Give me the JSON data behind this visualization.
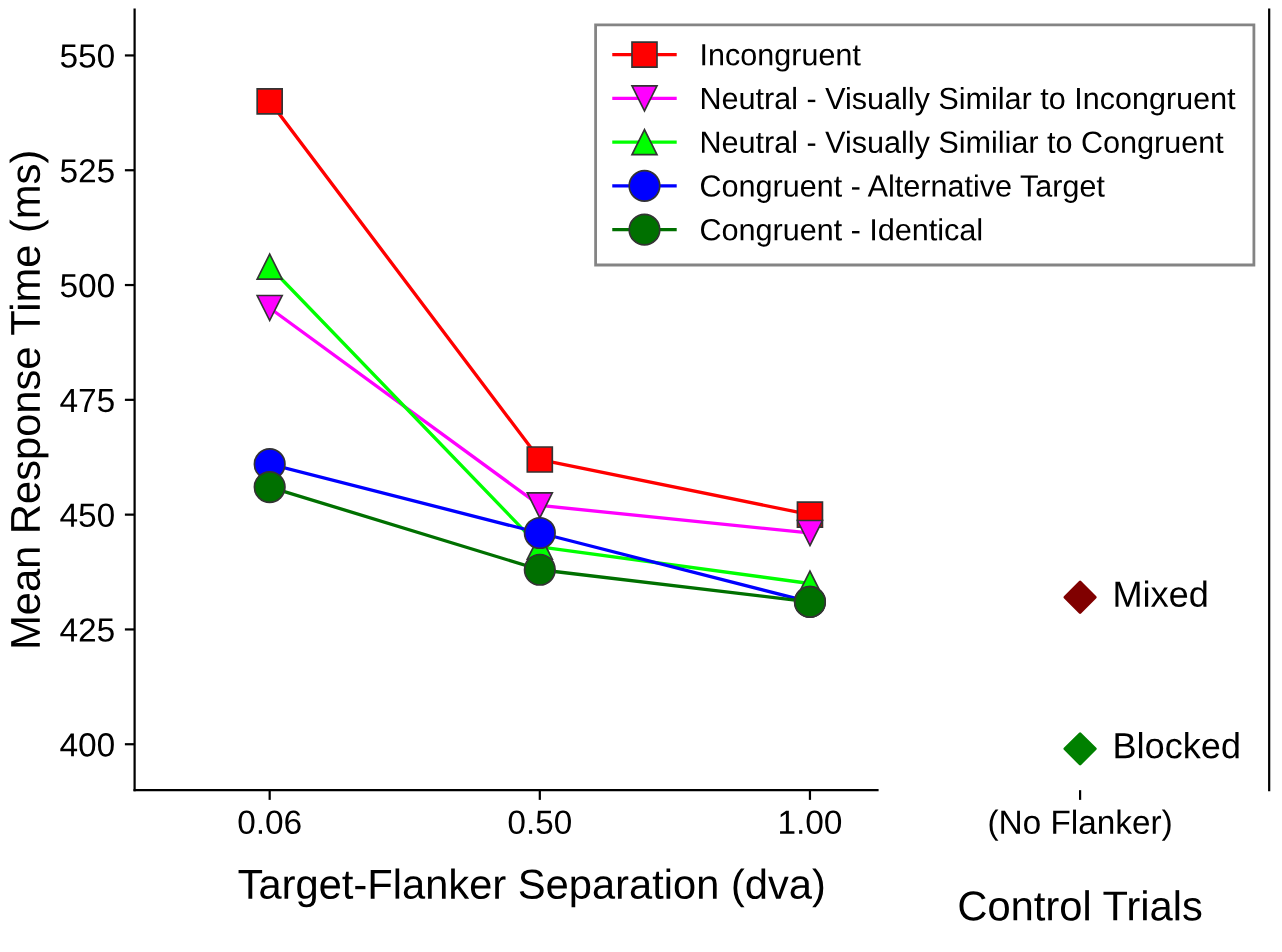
{
  "chart_data": {
    "type": "line",
    "xlabel": "Target-Flanker Separation (dva)",
    "ylabel": "Mean Response Time (ms)",
    "categories": [
      "0.06",
      "0.50",
      "1.00",
      "(No Flanker)"
    ],
    "ylim": [
      390,
      560
    ],
    "yticks": [
      400,
      425,
      450,
      475,
      500,
      525,
      550
    ],
    "grid": false,
    "legend": "top right",
    "line_style": "solid",
    "series": [
      {
        "name": "Incongruent",
        "color": "#ff0000",
        "marker": "square",
        "values": [
          540,
          462,
          450,
          null
        ]
      },
      {
        "name": "Neutral - Visually Similar to Incongruent",
        "color": "#ff00ff",
        "marker": "triangle_down",
        "values": [
          495,
          452,
          446,
          null
        ]
      },
      {
        "name": "Neutral - Visually Similiar to Congruent",
        "color": "#00ff00",
        "marker": "triangle",
        "values": [
          504,
          443,
          435,
          null
        ]
      },
      {
        "name": "Congruent - Alternative Target",
        "color": "#0000ff",
        "marker": "circle",
        "values": [
          461,
          446,
          431,
          null
        ]
      },
      {
        "name": "Congruent - Identical",
        "color": "#007000",
        "marker": "circle",
        "values": [
          456,
          438,
          431,
          null
        ]
      },
      {
        "name": "Mixed",
        "type": "scatter",
        "color": "#800000",
        "marker": "diamond",
        "values": [
          null,
          null,
          null,
          432
        ]
      },
      {
        "name": "Blocked",
        "type": "scatter",
        "color": "#008000",
        "marker": "diamond",
        "values": [
          null,
          null,
          null,
          399
        ]
      }
    ],
    "annotations": [
      "Control Trials"
    ]
  }
}
